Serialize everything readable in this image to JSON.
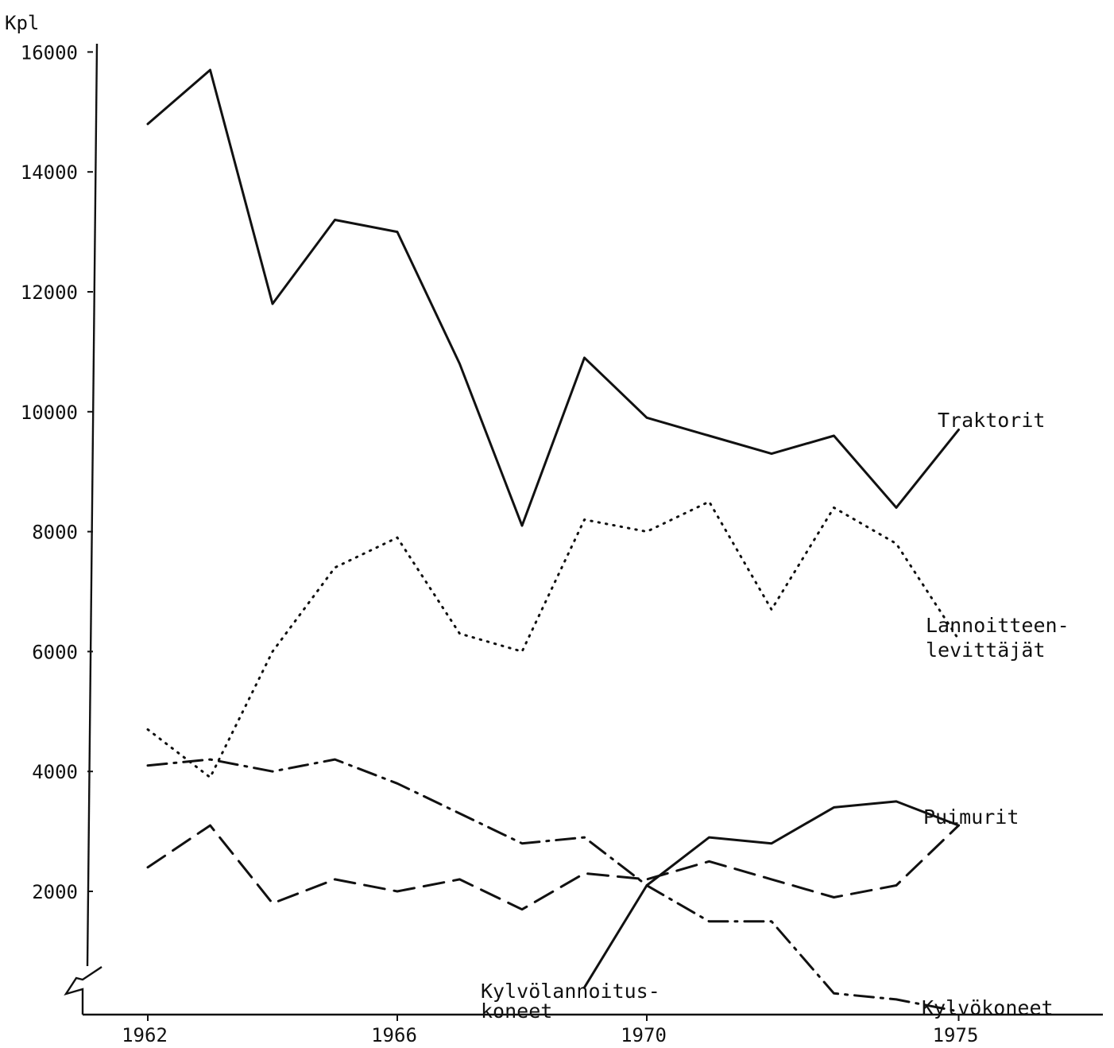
{
  "chart_data": {
    "type": "line",
    "ylabel": "Kpl",
    "xlim": [
      1962,
      1975
    ],
    "ylim": [
      0,
      16000
    ],
    "y_axis_broken": true,
    "grid": false,
    "x_ticks": [
      {
        "value": 1962,
        "label": "1962"
      },
      {
        "value": 1966,
        "label": "1966"
      },
      {
        "value": 1970,
        "label": "1970"
      },
      {
        "value": 1975,
        "label": "1975"
      }
    ],
    "y_ticks": [
      {
        "value": 2000,
        "label": "2000"
      },
      {
        "value": 4000,
        "label": "4000"
      },
      {
        "value": 6000,
        "label": "6000"
      },
      {
        "value": 8000,
        "label": "8000"
      },
      {
        "value": 10000,
        "label": "10000"
      },
      {
        "value": 12000,
        "label": "12000"
      },
      {
        "value": 14000,
        "label": "14000"
      },
      {
        "value": 16000,
        "label": "16000"
      }
    ],
    "series": [
      {
        "name": "Traktorit",
        "style": "solid",
        "x": [
          1962,
          1963,
          1964,
          1965,
          1966,
          1967,
          1968,
          1969,
          1970,
          1971,
          1972,
          1973,
          1974,
          1975
        ],
        "values": [
          14800,
          15700,
          11800,
          13200,
          13000,
          10800,
          8100,
          10900,
          9900,
          9600,
          9300,
          9600,
          8400,
          9700
        ]
      },
      {
        "name": "Lannoitteen-levittäjät",
        "name_lines": [
          "Lannoitteen-",
          "levittäjät"
        ],
        "style": "dotted",
        "x": [
          1962,
          1963,
          1964,
          1965,
          1966,
          1967,
          1968,
          1969,
          1970,
          1971,
          1972,
          1973,
          1974,
          1975
        ],
        "values": [
          4700,
          3900,
          6000,
          7400,
          7900,
          6300,
          6000,
          8200,
          8000,
          8500,
          6700,
          8400,
          7800,
          6200
        ]
      },
      {
        "name": "Puimurit",
        "style": "dashed",
        "x": [
          1962,
          1963,
          1964,
          1965,
          1966,
          1967,
          1968,
          1969,
          1970,
          1971,
          1972,
          1973,
          1974,
          1975
        ],
        "values": [
          2400,
          3100,
          1800,
          2200,
          2000,
          2200,
          1700,
          2300,
          2200,
          2500,
          2200,
          1900,
          2100,
          3100
        ]
      },
      {
        "name": "Kylvökoneet",
        "style": "dashdot",
        "x": [
          1962,
          1963,
          1964,
          1965,
          1966,
          1967,
          1968,
          1969,
          1970,
          1971,
          1972,
          1973,
          1974,
          1975
        ],
        "values": [
          4100,
          4200,
          4000,
          4200,
          3800,
          3300,
          2800,
          2900,
          2100,
          1500,
          1500,
          300,
          200,
          0
        ]
      },
      {
        "name": "Kylvölannoitus-koneet",
        "name_lines": [
          "Kylvölannoitus-",
          "koneet"
        ],
        "style": "solid",
        "x": [
          1969,
          1970,
          1971,
          1972,
          1973,
          1974,
          1975
        ],
        "values": [
          400,
          2100,
          2900,
          2800,
          3400,
          3500,
          3100
        ]
      }
    ]
  }
}
